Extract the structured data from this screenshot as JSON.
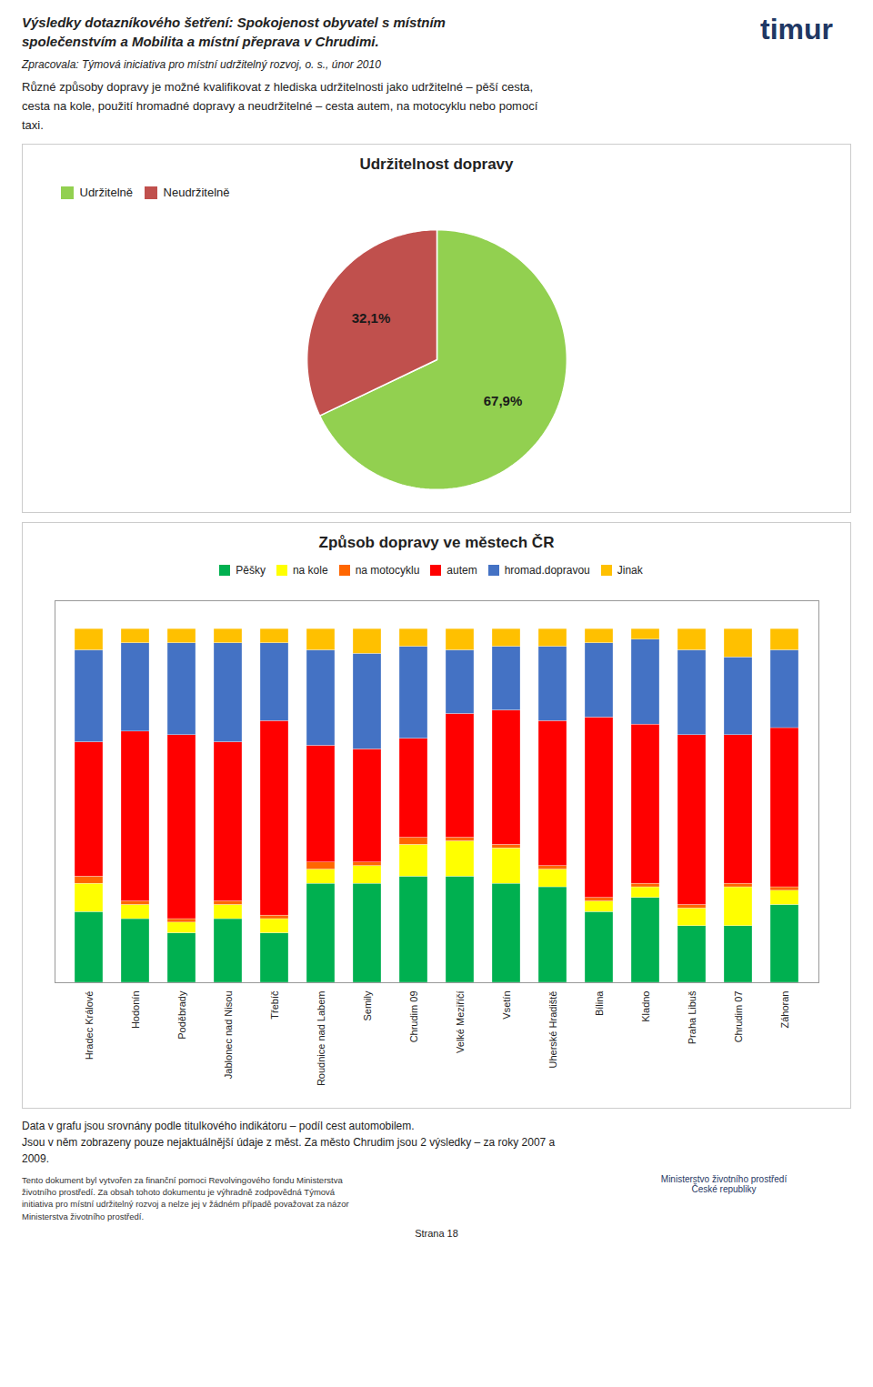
{
  "title": "Výsledky dotazníkového šetření: Spokojenost obyvatel s místním\nspolečenstvím a Mobilita a místní přeprava v Chrudimi.",
  "subtitle": "Zpracovala: Týmová iniciativa pro místní udržitelný rozvoj, o. s., únor 2010",
  "annotations": [
    "timur",
    "Různé způsoby dopravy je možné kvalifikovat z hlediska udržitelnosti jako udržitelné – pěší cesta,\ncesta na kole, použití hromadné dopravy a neudržitelné – cesta autem, na motocyklu nebo pomocí\ntaxi.",
    "Data v grafu jsou srovnány podle titulkového indikátoru – podíl cest automobilem.\nJsou v něm zobrazeny pouze nejaktuálnější údaje z měst. Za město Chrudim jsou 2 výsledky – za roky 2007 a\n2009.",
    "Tento dokument byl vytvořen za finanční pomoci Revolvingového fondu Ministerstva\nživotního prostředí. Za obsah tohoto dokumentu je výhradně zodpovědná Týmová\ninitiativa pro místní udržitelný rozvoj a nelze jej v žádném případě považovat za názor\nMinisterstva životního prostředí.",
    "Ministerstvo životního prostředí\nČeské republiky",
    "Strana 18"
  ],
  "chart_data": [
    {
      "type": "pie",
      "title": "Udržitelnost dopravy",
      "categories": [
        "Udržitelně",
        "Neudržitelně"
      ],
      "values": [
        67.9,
        32.1
      ],
      "value_labels": [
        "67,9%",
        "32,1%"
      ],
      "colors": [
        "#92D050",
        "#C0504D"
      ],
      "data_labels": true,
      "legend": "top-left"
    },
    {
      "type": "bar",
      "title": "Způsob dopravy ve městech ČR",
      "categories": [
        "Hradec Králové",
        "Hodonín",
        "Poděbrady",
        "Jablonec nad Nisou",
        "Třebíč",
        "Roudnice nad Labem",
        "Semily",
        "Chrudim 09",
        "Velké Meziříčí",
        "Vsetín",
        "Uherské Hradiště",
        "Bílina",
        "Kladno",
        "Praha Libuš",
        "Chrudim 07",
        "Záhoran"
      ],
      "series": [
        {
          "name": "Pěšky",
          "color": "#00B050",
          "values": [
            20,
            18,
            14,
            18,
            14,
            28,
            28,
            30,
            30,
            28,
            27,
            20,
            24,
            16,
            16,
            22
          ]
        },
        {
          "name": "na kole",
          "color": "#FFFF00",
          "values": [
            8,
            4,
            3,
            4,
            4,
            4,
            5,
            9,
            10,
            10,
            5,
            3,
            3,
            5,
            11,
            4
          ]
        },
        {
          "name": "na motocyklu",
          "color": "#FF6600",
          "values": [
            2,
            1,
            1,
            1,
            1,
            2,
            1,
            2,
            1,
            1,
            1,
            1,
            1,
            1,
            1,
            1
          ]
        },
        {
          "name": "autem",
          "color": "#FF0000",
          "values": [
            38,
            48,
            52,
            45,
            55,
            33,
            32,
            28,
            35,
            38,
            41,
            51,
            45,
            48,
            42,
            45
          ]
        },
        {
          "name": "hromad.dopravou",
          "color": "#4472C4",
          "values": [
            26,
            25,
            26,
            28,
            22,
            27,
            27,
            26,
            18,
            18,
            21,
            21,
            24,
            24,
            22,
            22
          ]
        },
        {
          "name": "Jinak",
          "color": "#FFC000",
          "values": [
            6,
            4,
            4,
            4,
            4,
            6,
            7,
            5,
            6,
            5,
            5,
            4,
            3,
            6,
            8,
            6
          ]
        }
      ],
      "stacked": true,
      "ylim": [
        0,
        108
      ],
      "yticks": [],
      "tick_labels": "x",
      "grid": false,
      "legend": "top"
    }
  ]
}
